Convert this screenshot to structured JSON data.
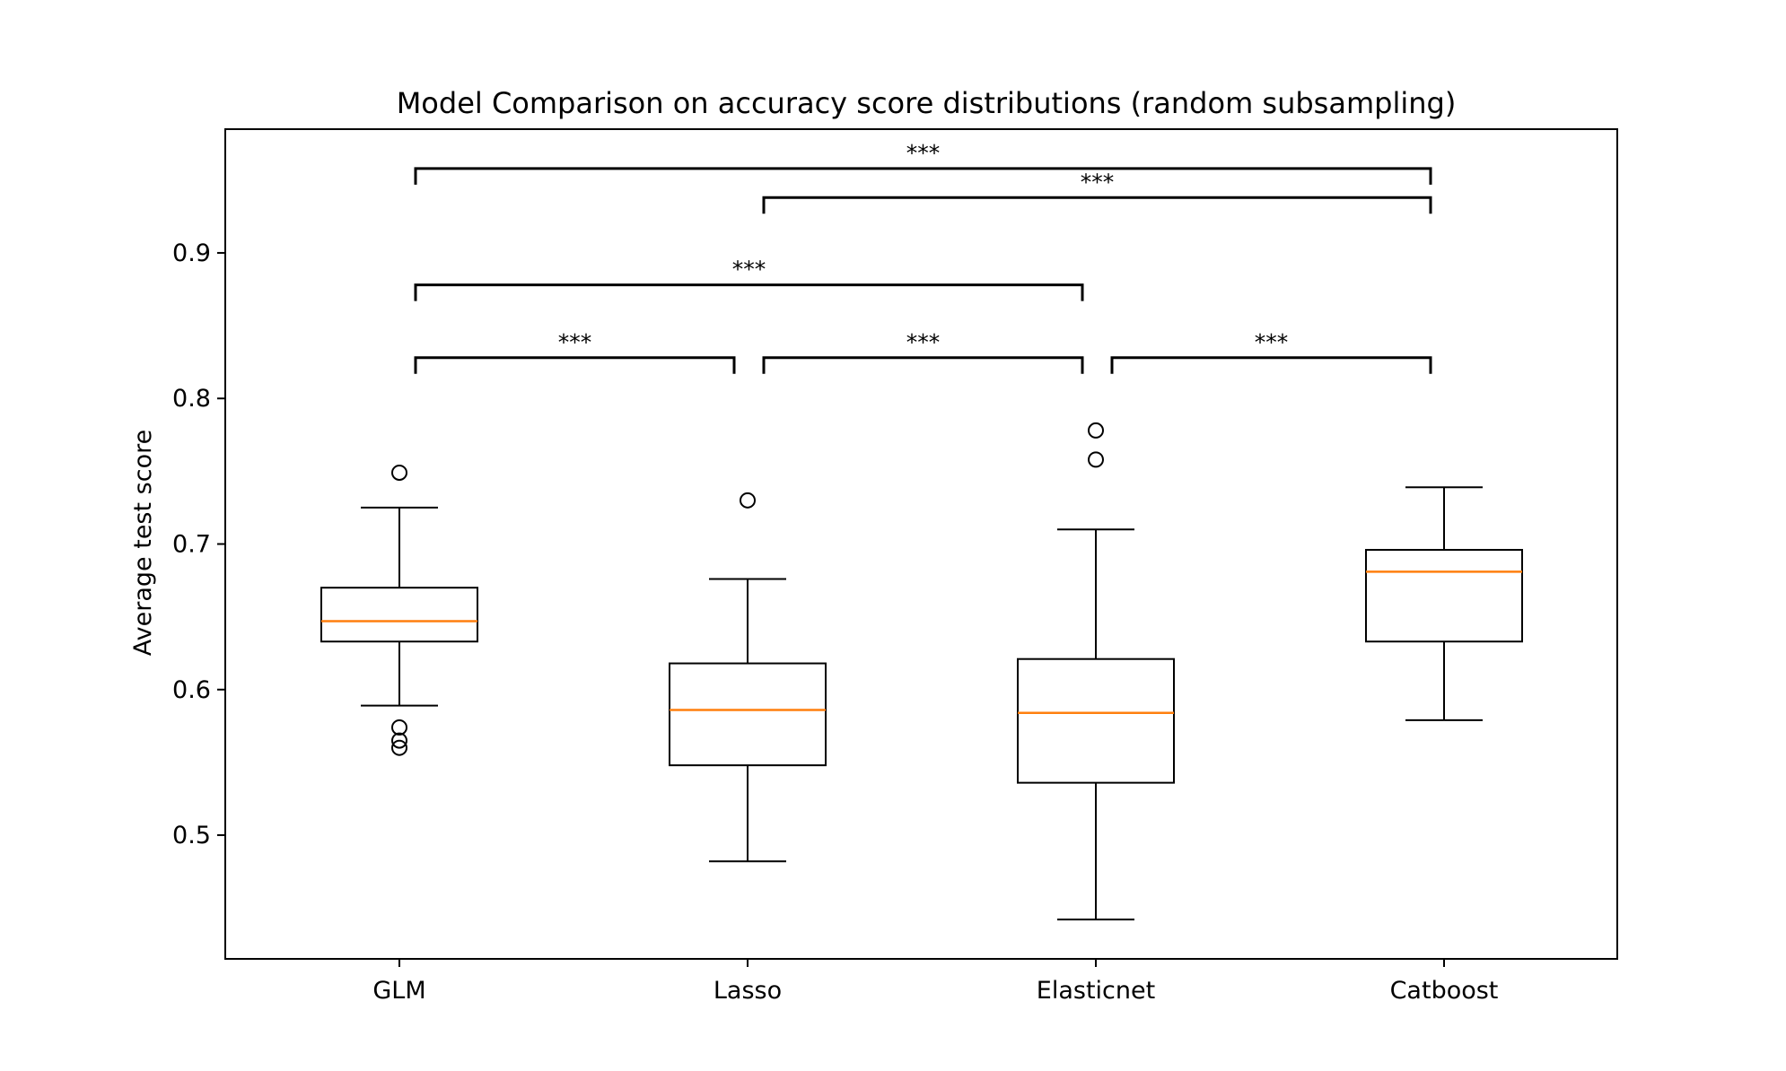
{
  "chart_data": {
    "type": "box",
    "title": "Model Comparison on accuracy score distributions (random subsampling)",
    "xlabel": "",
    "ylabel": "Average test score",
    "ylim": [
      0.415,
      0.985
    ],
    "yticks": [
      0.5,
      0.6,
      0.7,
      0.8,
      0.9
    ],
    "ytick_labels": [
      "0.5",
      "0.6",
      "0.7",
      "0.8",
      "0.9"
    ],
    "grid": false,
    "median_color": "#ff7f0e",
    "box_color": "#000000",
    "categories": [
      "GLM",
      "Lasso",
      "Elasticnet",
      "Catboost"
    ],
    "boxes": [
      {
        "label": "GLM",
        "whisker_low": 0.589,
        "q1": 0.633,
        "median": 0.647,
        "q3": 0.67,
        "whisker_high": 0.725,
        "outliers": [
          0.749,
          0.574,
          0.565,
          0.56
        ]
      },
      {
        "label": "Lasso",
        "whisker_low": 0.482,
        "q1": 0.548,
        "median": 0.586,
        "q3": 0.618,
        "whisker_high": 0.676,
        "outliers": [
          0.73
        ]
      },
      {
        "label": "Elasticnet",
        "whisker_low": 0.442,
        "q1": 0.536,
        "median": 0.584,
        "q3": 0.621,
        "whisker_high": 0.71,
        "outliers": [
          0.778,
          0.758
        ]
      },
      {
        "label": "Catboost",
        "whisker_low": 0.579,
        "q1": 0.633,
        "median": 0.681,
        "q3": 0.696,
        "whisker_high": 0.739,
        "outliers": []
      }
    ],
    "annotations": [
      {
        "from": 0,
        "to": 1,
        "level": 0.828,
        "label": "***"
      },
      {
        "from": 1,
        "to": 2,
        "level": 0.828,
        "label": "***"
      },
      {
        "from": 2,
        "to": 3,
        "level": 0.828,
        "label": "***"
      },
      {
        "from": 0,
        "to": 2,
        "level": 0.878,
        "label": "***"
      },
      {
        "from": 1,
        "to": 3,
        "level": 0.938,
        "label": "***"
      },
      {
        "from": 0,
        "to": 3,
        "level": 0.958,
        "label": "***"
      }
    ]
  }
}
